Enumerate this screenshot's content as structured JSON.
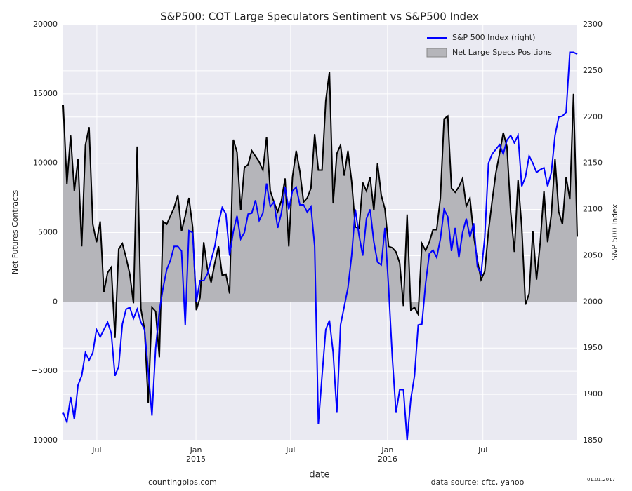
{
  "chart_data": {
    "type": "line",
    "title": "S&P500: COT Large Speculators Sentiment vs S&P500 Index",
    "xlabel": "date",
    "ylabel": "Net Futures Contracts",
    "y2label": "S&P 500 Index",
    "footer_left": "countingpips.com",
    "footer_right": "data source: cftc, yahoo",
    "footer_date": "01.01.2017",
    "legend": "upper right",
    "grid": true,
    "xlim": [
      0,
      139
    ],
    "xticks": [
      {
        "value": 9.1,
        "label": [
          "Jul"
        ]
      },
      {
        "value": 35.9,
        "label": [
          "Jan",
          "2015"
        ]
      },
      {
        "value": 61.5,
        "label": [
          "Jul"
        ]
      },
      {
        "value": 87.7,
        "label": [
          "Jan",
          "2016"
        ]
      },
      {
        "value": 113.5,
        "label": [
          "Jul"
        ]
      }
    ],
    "ylim": [
      -10000,
      20000
    ],
    "yticks": [
      {
        "value": -10000,
        "label": "−10000"
      },
      {
        "value": -5000,
        "label": "−5000"
      },
      0,
      5000,
      10000,
      15000,
      20000
    ],
    "y2lim": [
      1850,
      2300
    ],
    "y2ticks": [
      1850,
      1900,
      1950,
      2000,
      2050,
      2100,
      2150,
      2200,
      2250,
      2300
    ],
    "series": [
      {
        "name": "S&P 500 Index (right)",
        "type": "line",
        "axis": "y2",
        "color": "#0000ff",
        "values": [
          1880,
          1870,
          1897,
          1873,
          1910,
          1920,
          1945,
          1937,
          1945,
          1970,
          1962,
          1970,
          1978,
          1966,
          1920,
          1930,
          1976,
          1992,
          1994,
          1982,
          1992,
          1978,
          1970,
          1925,
          1877,
          1950,
          1990,
          2015,
          2035,
          2045,
          2060,
          2060,
          2055,
          1975,
          2077,
          2075,
          2000,
          2023,
          2023,
          2030,
          2045,
          2060,
          2085,
          2102,
          2095,
          2050,
          2076,
          2093,
          2068,
          2075,
          2095,
          2096,
          2110,
          2088,
          2096,
          2128,
          2103,
          2108,
          2080,
          2096,
          2124,
          2100,
          2120,
          2124,
          2105,
          2105,
          2097,
          2103,
          2060,
          1868,
          1920,
          1970,
          1980,
          1945,
          1880,
          1975,
          1995,
          2015,
          2050,
          2100,
          2072,
          2050,
          2090,
          2100,
          2065,
          2043,
          2040,
          2080,
          2015,
          1940,
          1880,
          1905,
          1905,
          1850,
          1895,
          1920,
          1975,
          1976,
          2020,
          2052,
          2056,
          2048,
          2068,
          2100,
          2092,
          2055,
          2080,
          2048,
          2075,
          2090,
          2070,
          2085,
          2038,
          2030,
          2070,
          2150,
          2160,
          2165,
          2170,
          2160,
          2175,
          2180,
          2172,
          2180,
          2125,
          2135,
          2158,
          2150,
          2140,
          2143,
          2145,
          2125,
          2140,
          2180,
          2200,
          2201,
          2205,
          2270,
          2270,
          2268
        ]
      },
      {
        "name": "Net Large Specs Positions",
        "type": "area",
        "axis": "y",
        "color": "#000000",
        "fill": "#b5b5ba",
        "values": [
          14200,
          8500,
          12000,
          8000,
          10300,
          4000,
          11300,
          12600,
          5600,
          4300,
          5800,
          700,
          2100,
          2500,
          -2600,
          3800,
          4200,
          3200,
          2000,
          -100,
          11200,
          -500,
          -2000,
          -7300,
          -400,
          -700,
          -4000,
          5800,
          5600,
          6200,
          6800,
          7700,
          5100,
          6200,
          7500,
          5400,
          -600,
          300,
          4300,
          2400,
          1400,
          2800,
          4000,
          1900,
          2000,
          600,
          11700,
          10800,
          6600,
          9700,
          9900,
          10900,
          10500,
          10100,
          9500,
          11900,
          8000,
          7200,
          6500,
          7300,
          8900,
          4000,
          9000,
          10900,
          9400,
          7200,
          7500,
          8200,
          12100,
          9500,
          9500,
          14500,
          16600,
          7100,
          10700,
          11300,
          9100,
          10900,
          8700,
          5400,
          5300,
          8600,
          8000,
          9000,
          6600,
          10000,
          7700,
          6700,
          4000,
          3900,
          3600,
          2800,
          -300,
          6300,
          -600,
          -400,
          -900,
          4200,
          3700,
          4300,
          5200,
          5200,
          7500,
          13200,
          13400,
          8200,
          7900,
          8300,
          8900,
          6900,
          7500,
          4800,
          3000,
          1600,
          2200,
          5100,
          7300,
          9300,
          10700,
          12200,
          11200,
          6500,
          3600,
          8800,
          5400,
          -200,
          600,
          5100,
          1600,
          4300,
          8000,
          4300,
          6300,
          10300,
          6500,
          5600,
          9000,
          7400,
          15000,
          4700
        ]
      }
    ]
  }
}
